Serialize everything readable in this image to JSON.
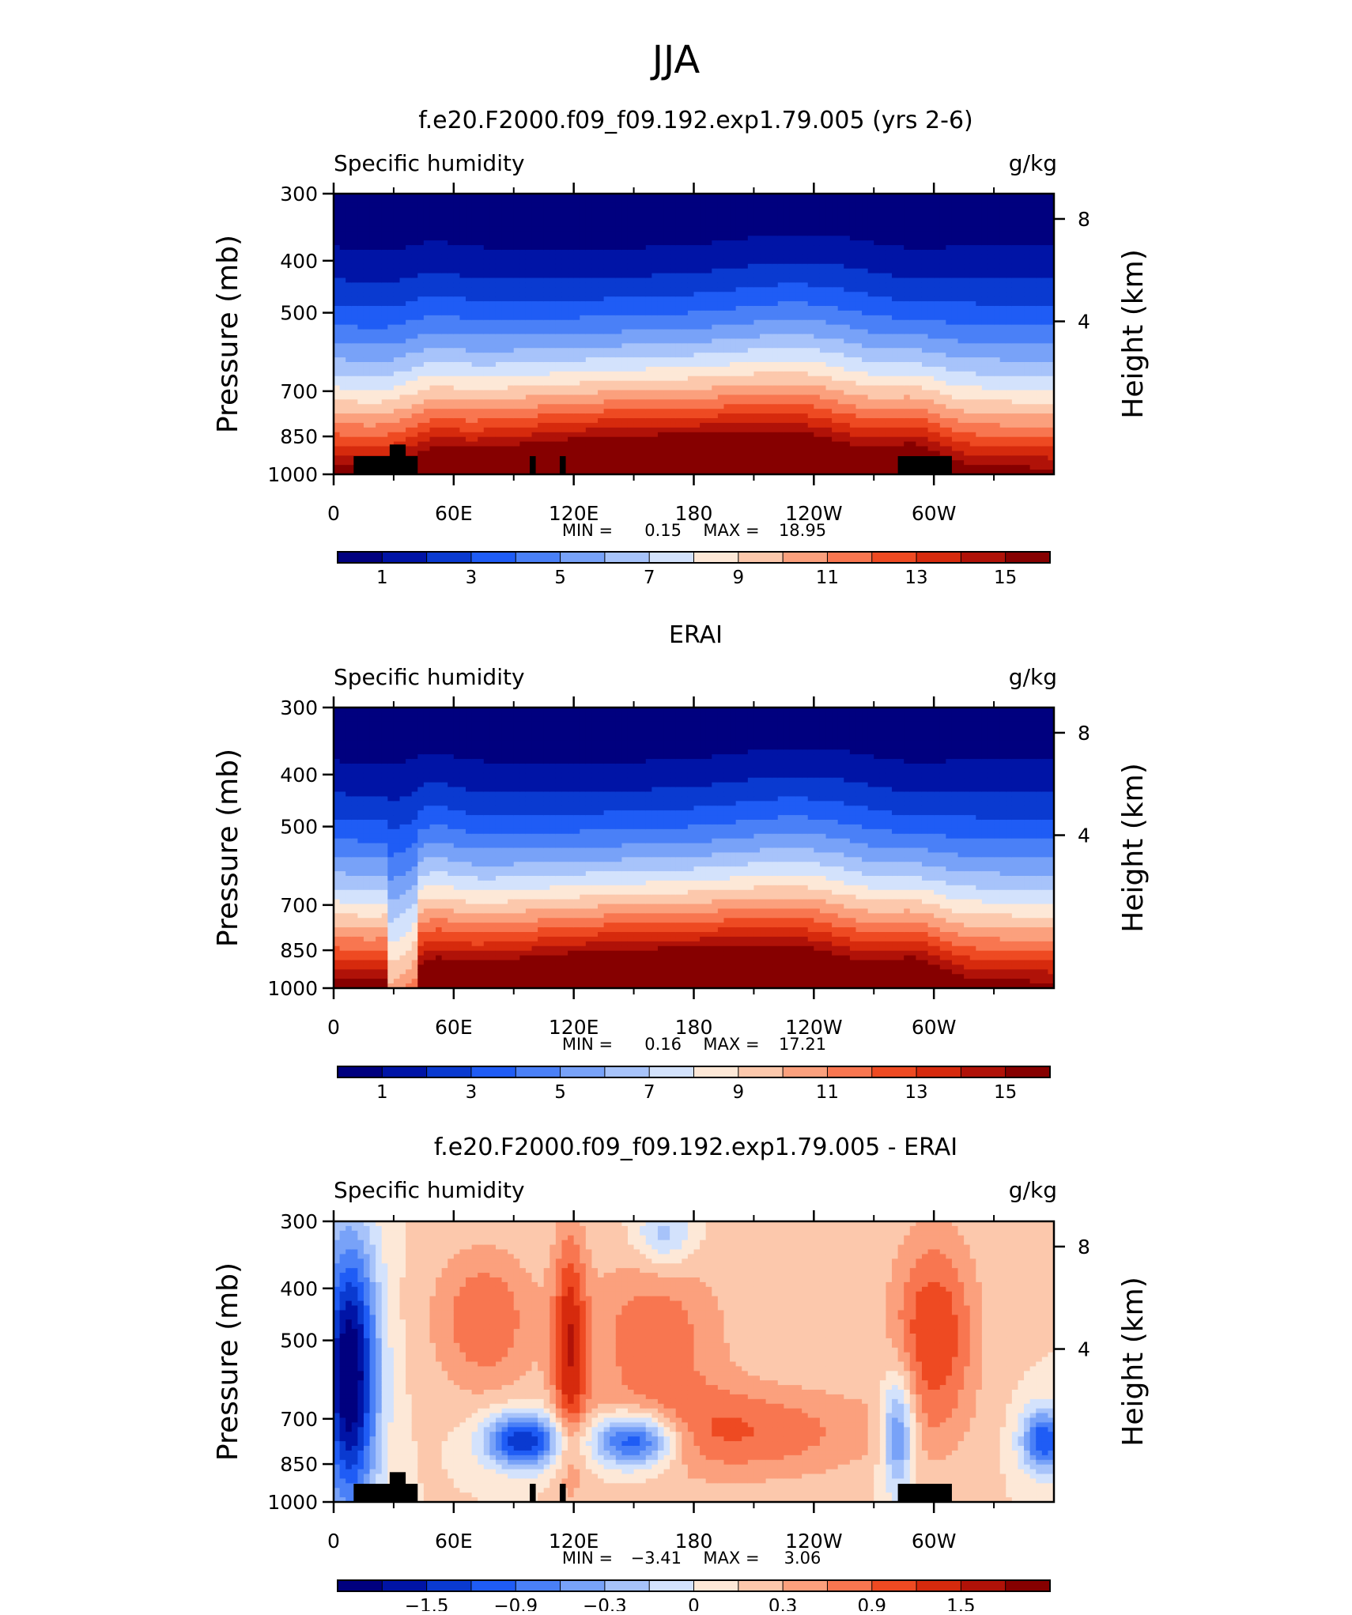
{
  "page_title": "JJA",
  "chart_data": [
    {
      "type": "heatmap",
      "title": "f.e20.F2000.f09_f09.192.exp1.79.005 (yrs 2-6)",
      "left_label": "Specific humidity",
      "units": "g/kg",
      "ylabel": "Pressure (mb)",
      "ylabel_right": "Height (km)",
      "y_ticks": [
        "300",
        "400",
        "500",
        "700",
        "850",
        "1000"
      ],
      "y_right_ticks": [
        "8",
        "4"
      ],
      "x_ticks": [
        "0",
        "60E",
        "120E",
        "180",
        "120W",
        "60W"
      ],
      "stats": {
        "min_label": "MIN =",
        "min": "0.15",
        "max_label": "MAX =",
        "max": "18.95"
      },
      "colorbar_labels": [
        "1",
        "3",
        "5",
        "7",
        "9",
        "11",
        "13",
        "15"
      ],
      "mode": "abs"
    },
    {
      "type": "heatmap",
      "title": "ERAI",
      "left_label": "Specific humidity",
      "units": "g/kg",
      "ylabel": "Pressure (mb)",
      "ylabel_right": "Height (km)",
      "y_ticks": [
        "300",
        "400",
        "500",
        "700",
        "850",
        "1000"
      ],
      "y_right_ticks": [
        "8",
        "4"
      ],
      "x_ticks": [
        "0",
        "60E",
        "120E",
        "180",
        "120W",
        "60W"
      ],
      "stats": {
        "min_label": "MIN =",
        "min": "0.16",
        "max_label": "MAX =",
        "max": "17.21"
      },
      "colorbar_labels": [
        "1",
        "3",
        "5",
        "7",
        "9",
        "11",
        "13",
        "15"
      ],
      "mode": "abs"
    },
    {
      "type": "heatmap",
      "title": "f.e20.F2000.f09_f09.192.exp1.79.005 - ERAI",
      "left_label": "Specific humidity",
      "units": "g/kg",
      "ylabel": "Pressure (mb)",
      "ylabel_right": "Height (km)",
      "y_ticks": [
        "300",
        "400",
        "500",
        "700",
        "850",
        "1000"
      ],
      "y_right_ticks": [
        "8",
        "4"
      ],
      "x_ticks": [
        "0",
        "60E",
        "120E",
        "180",
        "120W",
        "60W"
      ],
      "stats": {
        "min_label": "MIN =",
        "min": "−3.41",
        "max_label": "MAX =",
        "max": "3.06"
      },
      "colorbar_labels": [
        "−1.5",
        "−0.9",
        "−0.3",
        "0",
        "0.3",
        "0.9",
        "1.5"
      ],
      "mode": "diff"
    }
  ],
  "palette": [
    "#00007f",
    "#0014a6",
    "#0a3ad0",
    "#1f5cf5",
    "#4a80f7",
    "#78a2f8",
    "#a7c3fa",
    "#d3e2fc",
    "#fde8d7",
    "#fcc8ac",
    "#fba07d",
    "#f87650",
    "#ee4a22",
    "#d62a0d",
    "#b01208",
    "#860000"
  ]
}
